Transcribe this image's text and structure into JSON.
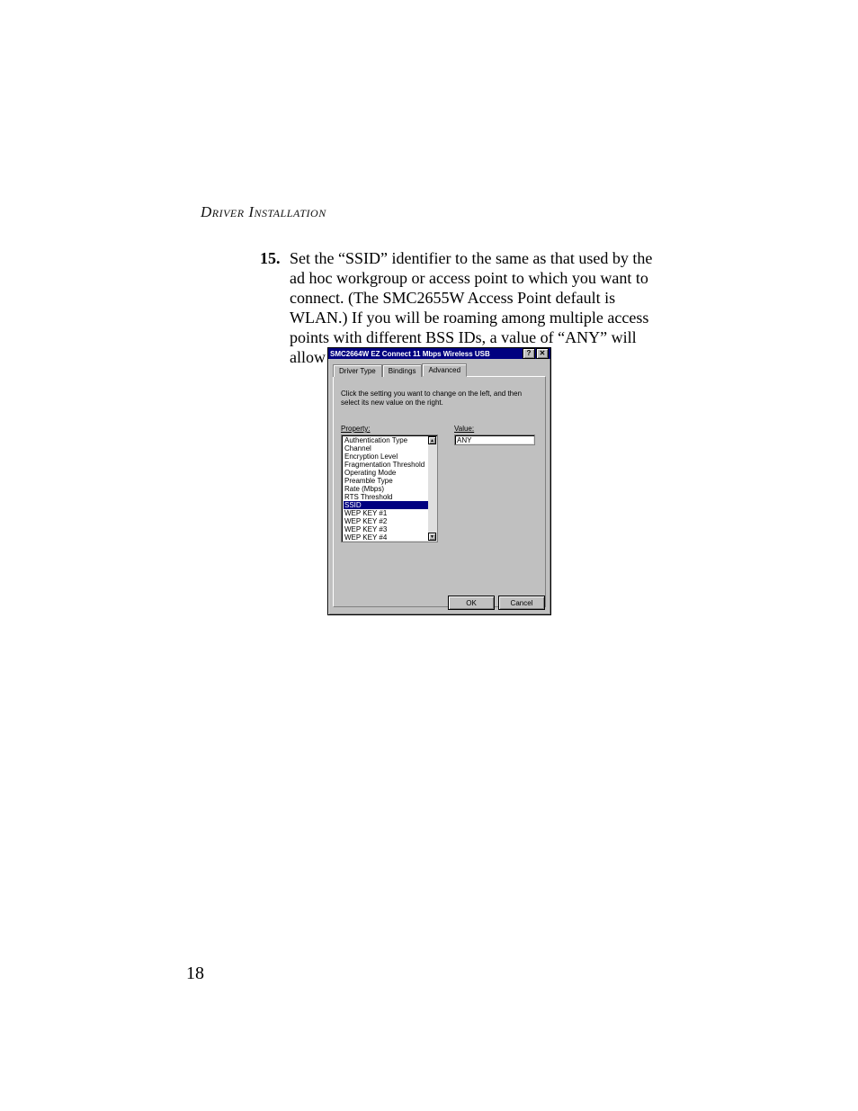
{
  "header": "Driver Installation",
  "step_number": "15.",
  "step_text": "Set the “SSID” identifier to the same as that used by the ad hoc workgroup or access point to which you want to connect. (The SMC2655W Access Point default is WLAN.) If you will be roaming among multiple access points with different BSS IDs, a value of “ANY” will allow connection to any SSID.",
  "page_number": "18",
  "dialog": {
    "title": "SMC2664W EZ Connect 11 Mbps Wireless USB",
    "help_btn": "?",
    "close_btn": "✕",
    "tabs": {
      "t1": "Driver Type",
      "t2": "Bindings",
      "t3": "Advanced"
    },
    "instruction": "Click the setting you want to change on the left, and then select its new value on the right.",
    "property_label": "Property:",
    "value_label": "Value:",
    "value_input": "ANY",
    "properties": [
      "Authentication Type",
      "Channel",
      "Encryption Level",
      "Fragmentation Threshold",
      "Operating Mode",
      "Preamble Type",
      "Rate (Mbps)",
      "RTS Threshold",
      "SSID",
      "WEP KEY #1",
      "WEP KEY #2",
      "WEP KEY #3",
      "WEP KEY #4"
    ],
    "selected_index": 8,
    "scroll_up": "▲",
    "scroll_down": "▼",
    "ok_btn": "OK",
    "cancel_btn": "Cancel"
  }
}
